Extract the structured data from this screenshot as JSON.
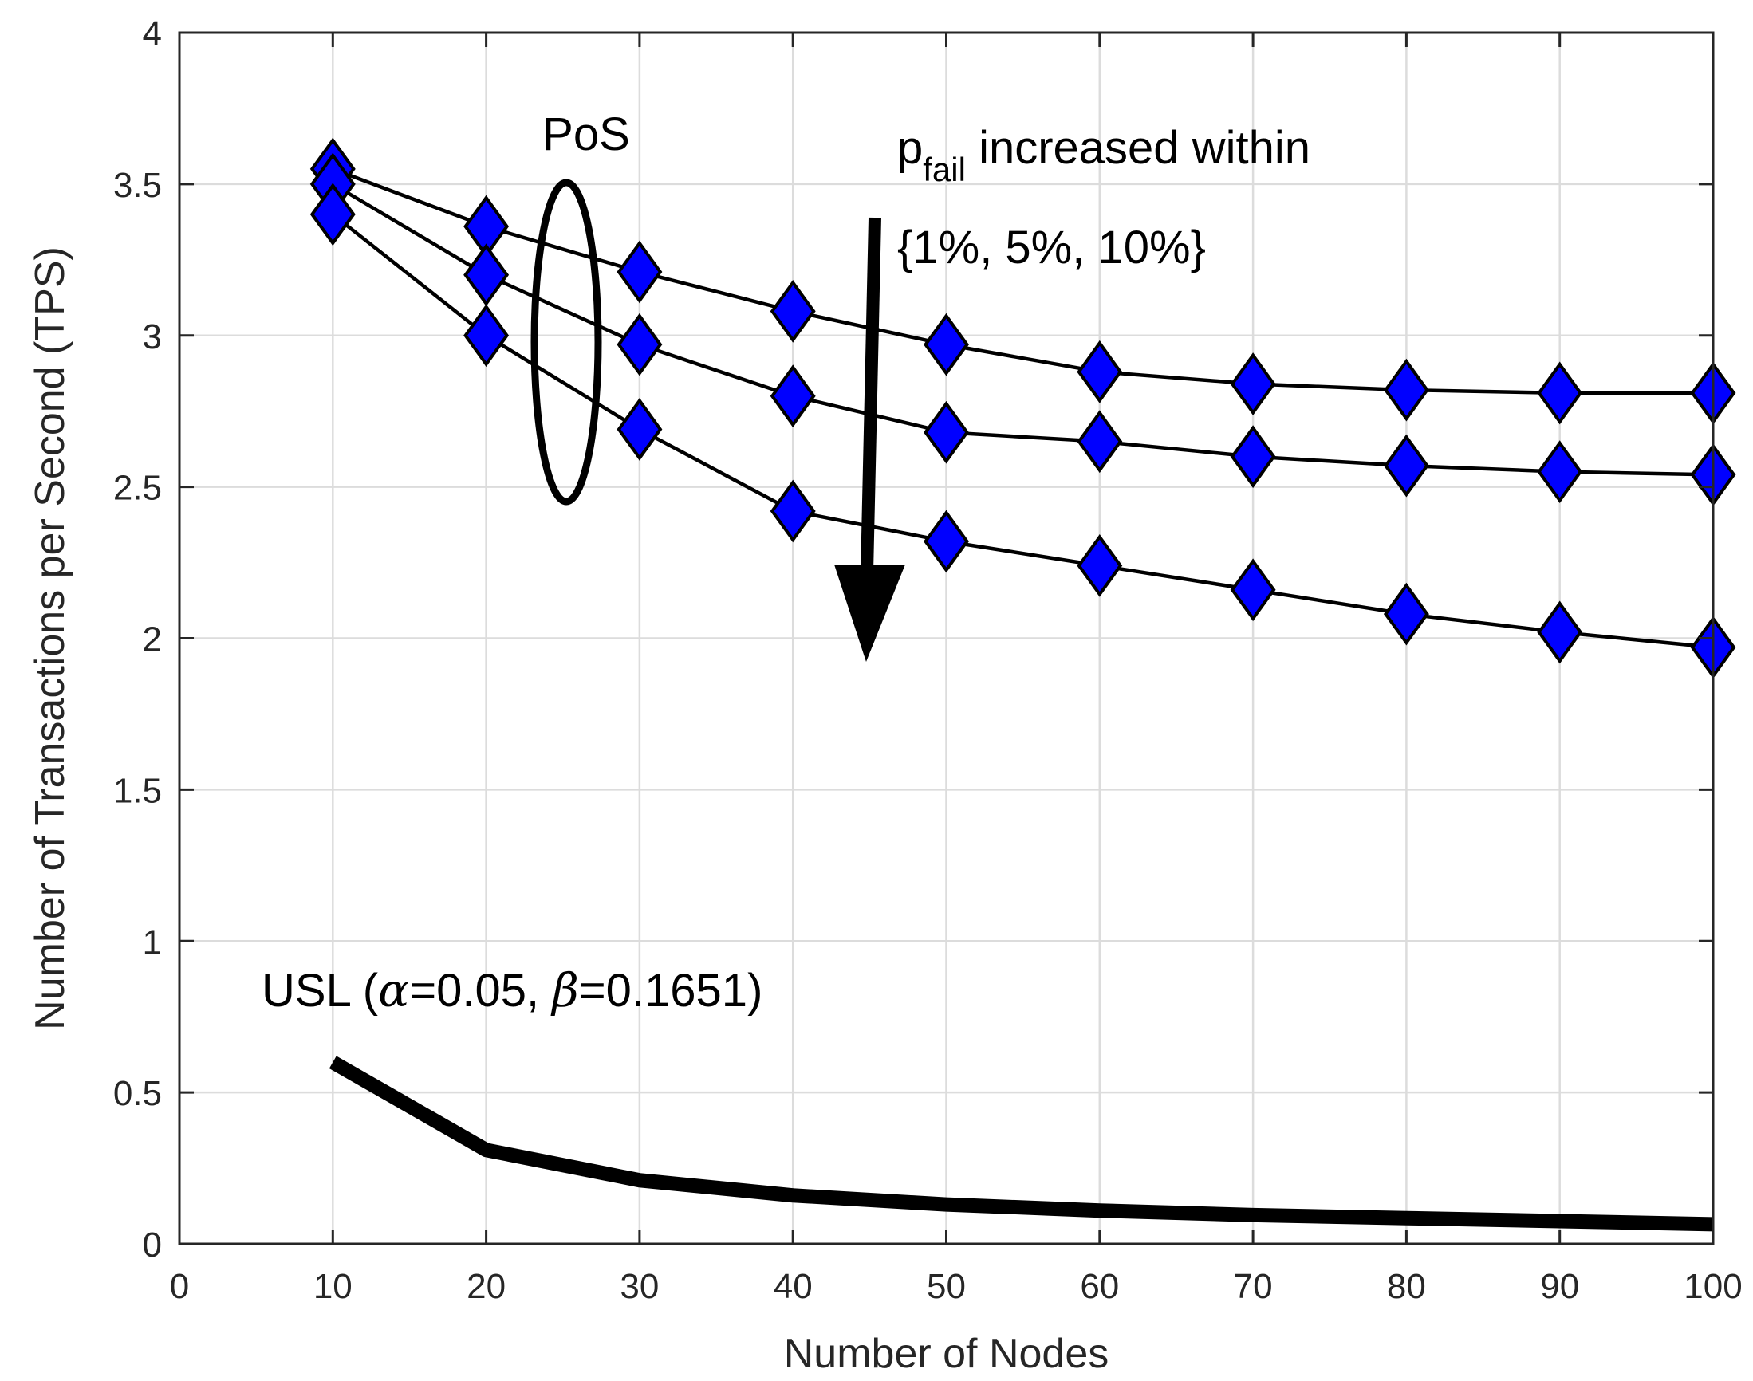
{
  "chart_data": {
    "type": "line",
    "title": "",
    "xlabel": "Number of Nodes",
    "ylabel": "Number of Transactions per Second (TPS)",
    "xlim": [
      0,
      100
    ],
    "ylim": [
      0,
      4
    ],
    "grid": true,
    "x_ticks": [
      0,
      10,
      20,
      30,
      40,
      50,
      60,
      70,
      80,
      90,
      100
    ],
    "y_ticks": [
      0,
      0.5,
      1,
      1.5,
      2,
      2.5,
      3,
      3.5,
      4
    ],
    "x_tick_labels": [
      "0",
      "10",
      "20",
      "30",
      "40",
      "50",
      "60",
      "70",
      "80",
      "90",
      "100"
    ],
    "y_tick_labels": [
      "0",
      "0.5",
      "1",
      "1.5",
      "2",
      "2.5",
      "3",
      "3.5",
      "4"
    ],
    "x": [
      10,
      20,
      30,
      40,
      50,
      60,
      70,
      80,
      90,
      100
    ],
    "series": [
      {
        "name": "PoS, p_fail = 1%",
        "marker": "diamond",
        "marker_color": "#0000ff",
        "line_color": "#000000",
        "values": [
          3.55,
          3.36,
          3.21,
          3.08,
          2.97,
          2.88,
          2.84,
          2.82,
          2.81,
          2.81
        ]
      },
      {
        "name": "PoS, p_fail = 5%",
        "marker": "diamond",
        "marker_color": "#0000ff",
        "line_color": "#000000",
        "values": [
          3.5,
          3.2,
          2.97,
          2.8,
          2.68,
          2.65,
          2.6,
          2.57,
          2.55,
          2.54
        ]
      },
      {
        "name": "PoS, p_fail = 10%",
        "marker": "diamond",
        "marker_color": "#0000ff",
        "line_color": "#000000",
        "values": [
          3.4,
          3.0,
          2.69,
          2.42,
          2.32,
          2.24,
          2.16,
          2.08,
          2.02,
          1.97
        ]
      },
      {
        "name": "USL (α=0.05, β=0.1651)",
        "marker": "none",
        "line_color": "#000000",
        "line_style": "thick",
        "values": [
          0.6,
          0.31,
          0.21,
          0.16,
          0.13,
          0.11,
          0.095,
          0.085,
          0.075,
          0.065
        ]
      }
    ],
    "annotations": {
      "pos_label": "PoS",
      "pfail_main": "p",
      "pfail_sub": "fail",
      "pfail_rest": " increased within",
      "pfail_set": "{1%, 5%, 10%}",
      "usl_prefix": "USL (",
      "usl_alpha": "α",
      "usl_mid": "=0.05, ",
      "usl_beta": "β",
      "usl_suffix": "=0.1651)"
    }
  }
}
